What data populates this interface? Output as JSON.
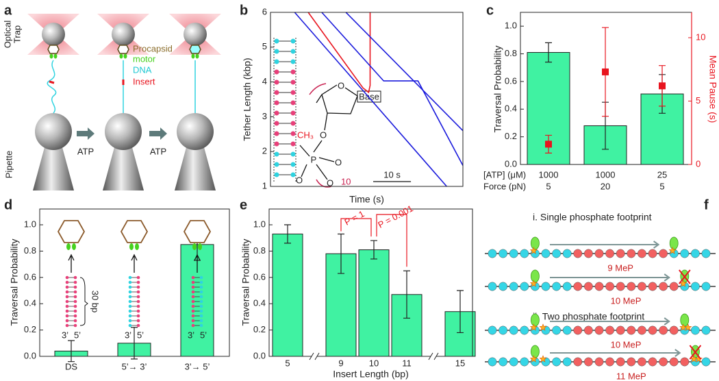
{
  "diagram_a": {
    "panel_label": "a",
    "trap_label": [
      "Optical",
      "Trap"
    ],
    "procapsid": "Procapsid",
    "motor": "motor",
    "dna": "DNA",
    "insert": "Insert",
    "pipette": "Pipette",
    "arrows": [
      "ATP",
      "ATP"
    ]
  },
  "chart_data": [
    {
      "type": "line",
      "panel_label": "b",
      "xlabel": "Time (s)",
      "ylabel": "Tether Length (kbp)",
      "xlim": [
        0,
        51
      ],
      "ylim": [
        1,
        6
      ],
      "yticks": [
        1,
        2,
        3,
        4,
        5,
        6
      ],
      "scale_bar": {
        "value": 10,
        "label": "10 s"
      },
      "inset_labels": {
        "base": "Base",
        "methyl": "CH₃",
        "oxygen": "O",
        "phosphorus": "P",
        "count": "10"
      },
      "series": [
        {
          "color": "#1a1adc",
          "x": [
            6.4,
            46.7
          ],
          "values": [
            6.0,
            1.0
          ]
        },
        {
          "color": "#e8141e",
          "x": [
            10.0,
            24.5,
            26.0,
            26.4,
            26.4
          ],
          "values": [
            6.0,
            3.83,
            3.7,
            3.9,
            6.0
          ]
        },
        {
          "color": "#1a1adc",
          "x": [
            13.6,
            30.0,
            39.1,
            51.0
          ],
          "values": [
            6.0,
            4.03,
            4.03,
            1.6
          ]
        },
        {
          "color": "#1a1adc",
          "x": [
            20.0,
            51.0
          ],
          "values": [
            6.0,
            2.6
          ]
        }
      ]
    },
    {
      "type": "bar",
      "panel_label": "c",
      "ylabel": "Traversal Probability",
      "y2label": "Mean Pause (s)",
      "category_labels": [
        "[ATP] (μM)",
        "Force (pN)"
      ],
      "categories": [
        [
          "1000",
          "5"
        ],
        [
          "1000",
          "20"
        ],
        [
          "25",
          "5"
        ]
      ],
      "ylim": [
        0,
        1.1
      ],
      "yticks": [
        {
          "value": 0,
          "label": "0.0"
        },
        0.2,
        0.4,
        0.6,
        0.8,
        {
          "value": 1,
          "label": "1.0"
        }
      ],
      "y2lim": [
        0,
        12
      ],
      "y2ticks": [
        0,
        5,
        10
      ],
      "y2color": "#e8141e",
      "series": [
        {
          "type": "bar",
          "color": "#40f2a2",
          "values": [
            0.81,
            0.28,
            0.51
          ],
          "errors": [
            0.07,
            0.17,
            0.14
          ]
        },
        {
          "type": "scatter",
          "axis": "y2",
          "color": "#e8141e",
          "values": [
            1.6,
            7.3,
            6.2
          ],
          "errors": [
            0.7,
            3.5,
            1.6
          ]
        }
      ]
    },
    {
      "type": "bar",
      "panel_label": "d",
      "ylabel": "Traversal Probability",
      "categories": [
        "DS",
        "5’→ 3’",
        "3’→ 5’"
      ],
      "ylim": [
        0,
        1.12
      ],
      "yticks": [
        {
          "value": 0,
          "label": "0.0"
        },
        0.2,
        0.4,
        0.6,
        0.8,
        {
          "value": 1,
          "label": "1.0"
        }
      ],
      "inset_labels": {
        "length": "30 bp",
        "strands": [
          "3’",
          "5’"
        ]
      },
      "series": [
        {
          "type": "bar",
          "color": "#40f2a2",
          "values": [
            0.04,
            0.1,
            0.85
          ],
          "errors": [
            0.08,
            0.12,
            0.12
          ]
        }
      ]
    },
    {
      "type": "bar",
      "panel_label": "e",
      "ylabel": "Traversal Probability",
      "xlabel": "Insert Length (bp)",
      "categories": [
        "5",
        "9",
        "10",
        "11",
        "15"
      ],
      "axis_breaks_after": [
        0,
        3
      ],
      "ylim": [
        0,
        1.12
      ],
      "yticks": [
        {
          "value": 0,
          "label": "0.0"
        },
        0.2,
        0.4,
        0.6,
        0.8,
        {
          "value": 1,
          "label": "1.0"
        }
      ],
      "annotations": [
        "P = 1",
        "P = 0.001"
      ],
      "series": [
        {
          "type": "bar",
          "color": "#40f2a2",
          "values": [
            0.93,
            0.78,
            0.81,
            0.47,
            0.34
          ],
          "errors": [
            0.07,
            0.15,
            0.07,
            0.18,
            0.16
          ]
        }
      ]
    }
  ],
  "diagram_f": {
    "panel_label": "f",
    "sections": [
      {
        "title": "i. Single phosphate footprint",
        "rows": [
          {
            "label": "9 MeP",
            "count": 9,
            "blocked": false
          },
          {
            "label": "10 MeP",
            "count": 10,
            "blocked": true
          }
        ]
      },
      {
        "title": "ii. Two phosphate footprint",
        "rows": [
          {
            "label": "10 MeP",
            "count": 10,
            "blocked": false
          },
          {
            "label": "11 MeP",
            "count": 11,
            "blocked": true
          }
        ]
      }
    ]
  }
}
